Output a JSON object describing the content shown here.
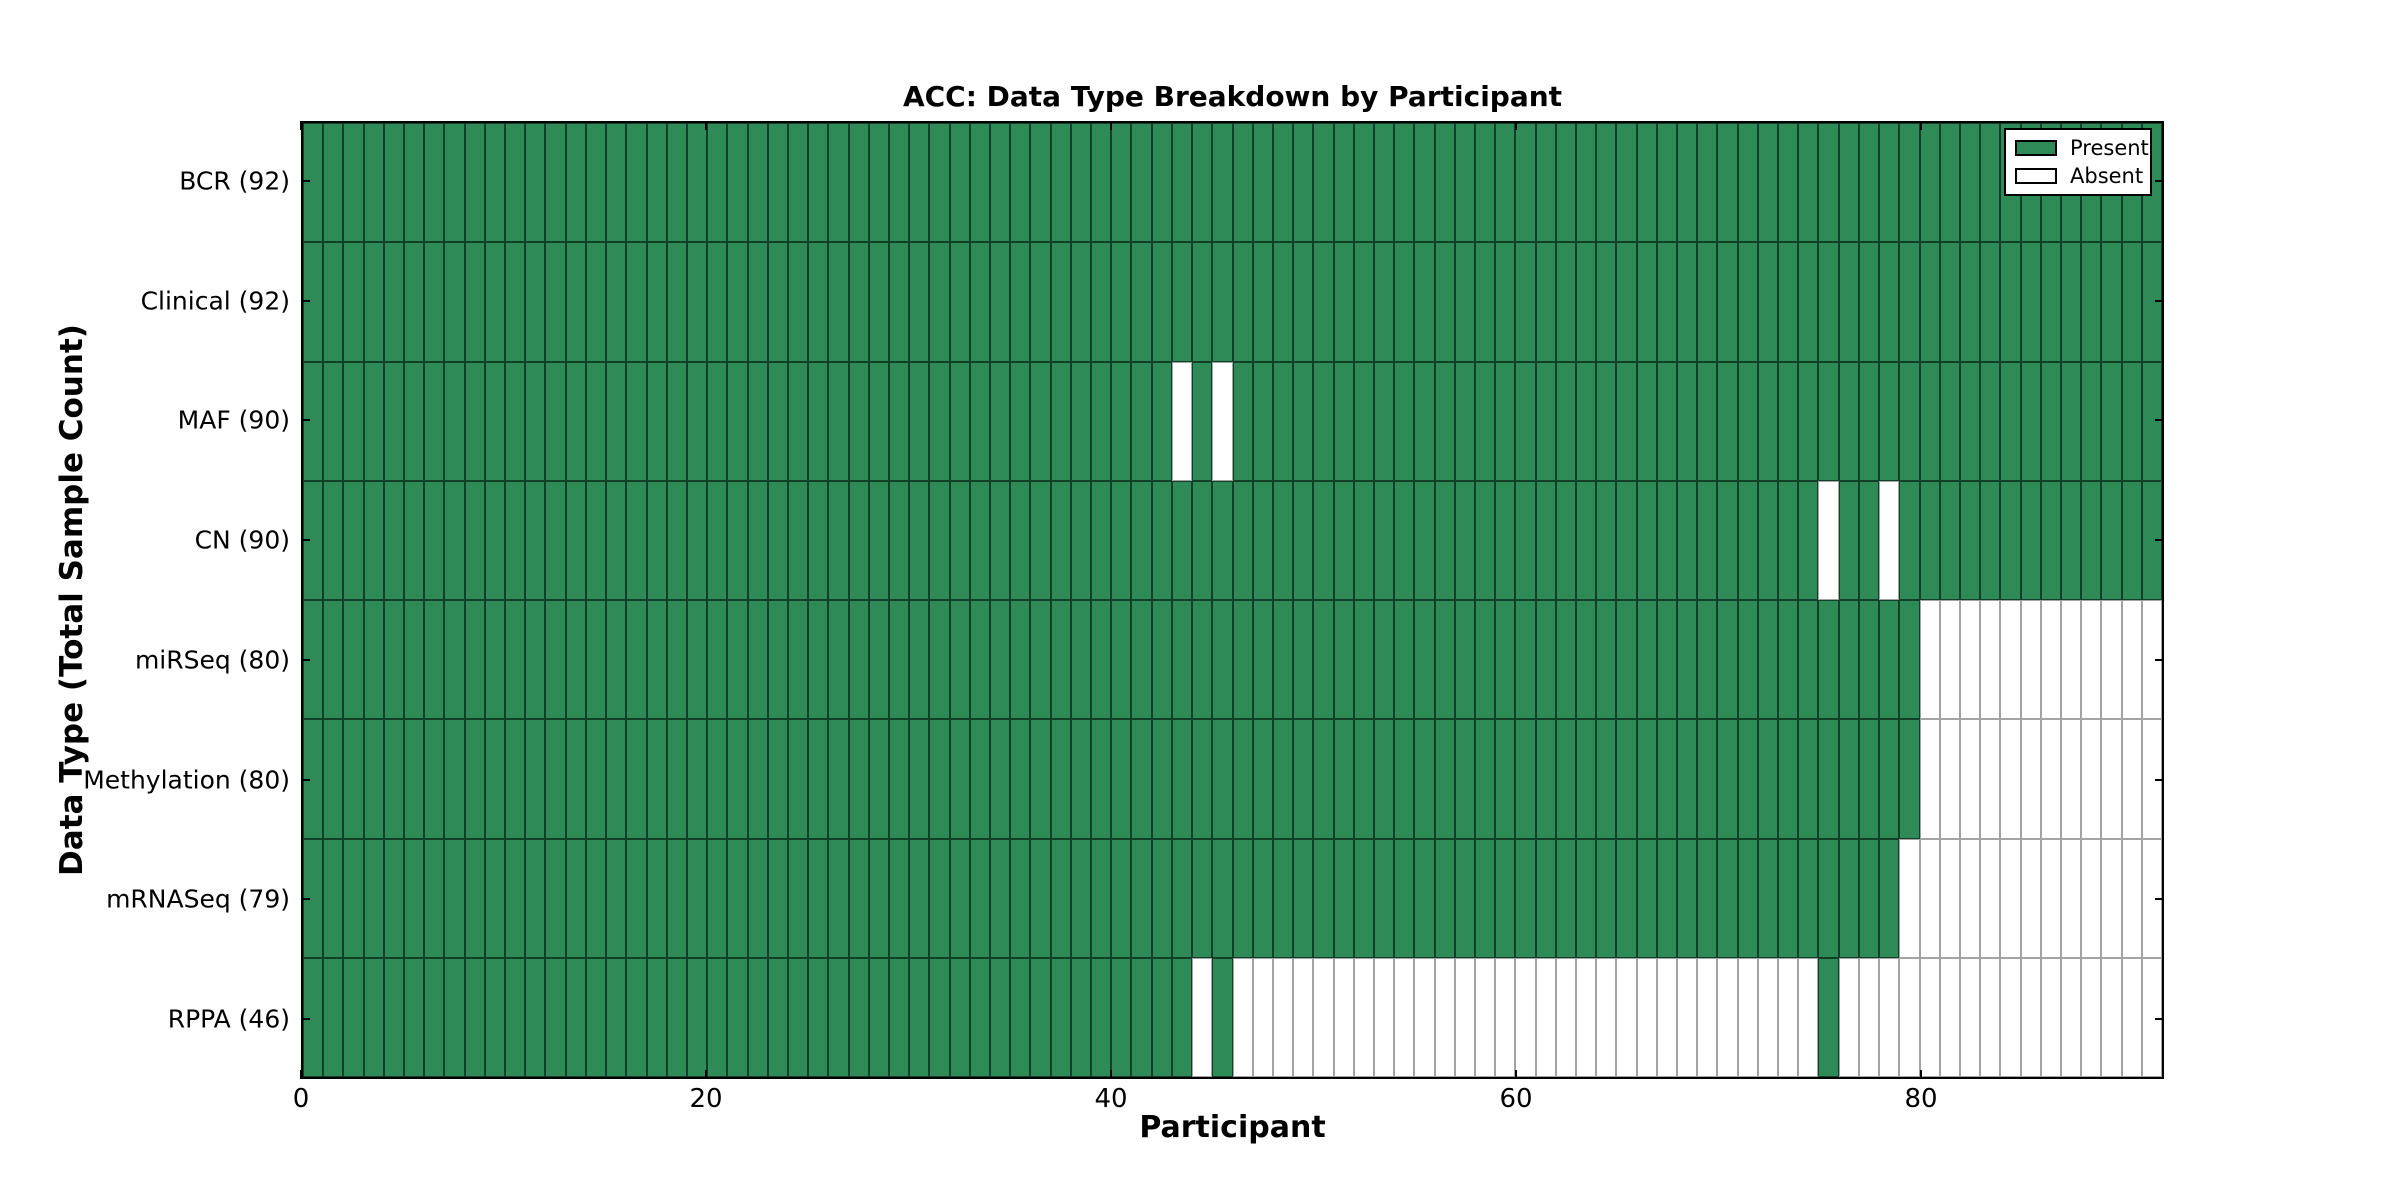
{
  "chart_data": {
    "type": "heatmap",
    "title": "ACC: Data Type Breakdown by Participant",
    "xlabel": "Participant",
    "ylabel": "Data Type (Total Sample Count)",
    "x_ticks": [
      0,
      20,
      40,
      60,
      80
    ],
    "x_range": [
      0,
      92
    ],
    "n_participants": 92,
    "present_color": "#2E8B57",
    "absent_color": "#ffffff",
    "legend": {
      "position": "upper right",
      "entries": [
        {
          "label": "Present",
          "color": "#2E8B57"
        },
        {
          "label": "Absent",
          "color": "#ffffff"
        }
      ]
    },
    "rows": [
      {
        "label": "BCR (92)",
        "data_type": "BCR",
        "total_samples": 92,
        "absent_participants": []
      },
      {
        "label": "Clinical (92)",
        "data_type": "Clinical",
        "total_samples": 92,
        "absent_participants": []
      },
      {
        "label": "MAF (90)",
        "data_type": "MAF",
        "total_samples": 90,
        "absent_participants": [
          43,
          45
        ]
      },
      {
        "label": "CN (90)",
        "data_type": "CN",
        "total_samples": 90,
        "absent_participants": [
          75,
          78
        ]
      },
      {
        "label": "miRSeq (80)",
        "data_type": "miRSeq",
        "total_samples": 80,
        "absent_participants": [
          80,
          81,
          82,
          83,
          84,
          85,
          86,
          87,
          88,
          89,
          90,
          91
        ]
      },
      {
        "label": "Methylation (80)",
        "data_type": "Methylation",
        "total_samples": 80,
        "absent_participants": [
          80,
          81,
          82,
          83,
          84,
          85,
          86,
          87,
          88,
          89,
          90,
          91
        ]
      },
      {
        "label": "mRNASeq (79)",
        "data_type": "mRNASeq",
        "total_samples": 79,
        "absent_participants": [
          79,
          80,
          81,
          82,
          83,
          84,
          85,
          86,
          87,
          88,
          89,
          90,
          91
        ]
      },
      {
        "label": "RPPA (46)",
        "data_type": "RPPA",
        "total_samples": 46,
        "absent_participants": [
          44,
          46,
          47,
          48,
          49,
          50,
          51,
          52,
          53,
          54,
          55,
          56,
          57,
          58,
          59,
          60,
          61,
          62,
          63,
          64,
          65,
          66,
          67,
          68,
          69,
          70,
          71,
          72,
          73,
          74,
          76,
          77,
          78,
          79,
          80,
          81,
          82,
          83,
          84,
          85,
          86,
          87,
          88,
          89,
          90,
          91
        ]
      }
    ]
  }
}
